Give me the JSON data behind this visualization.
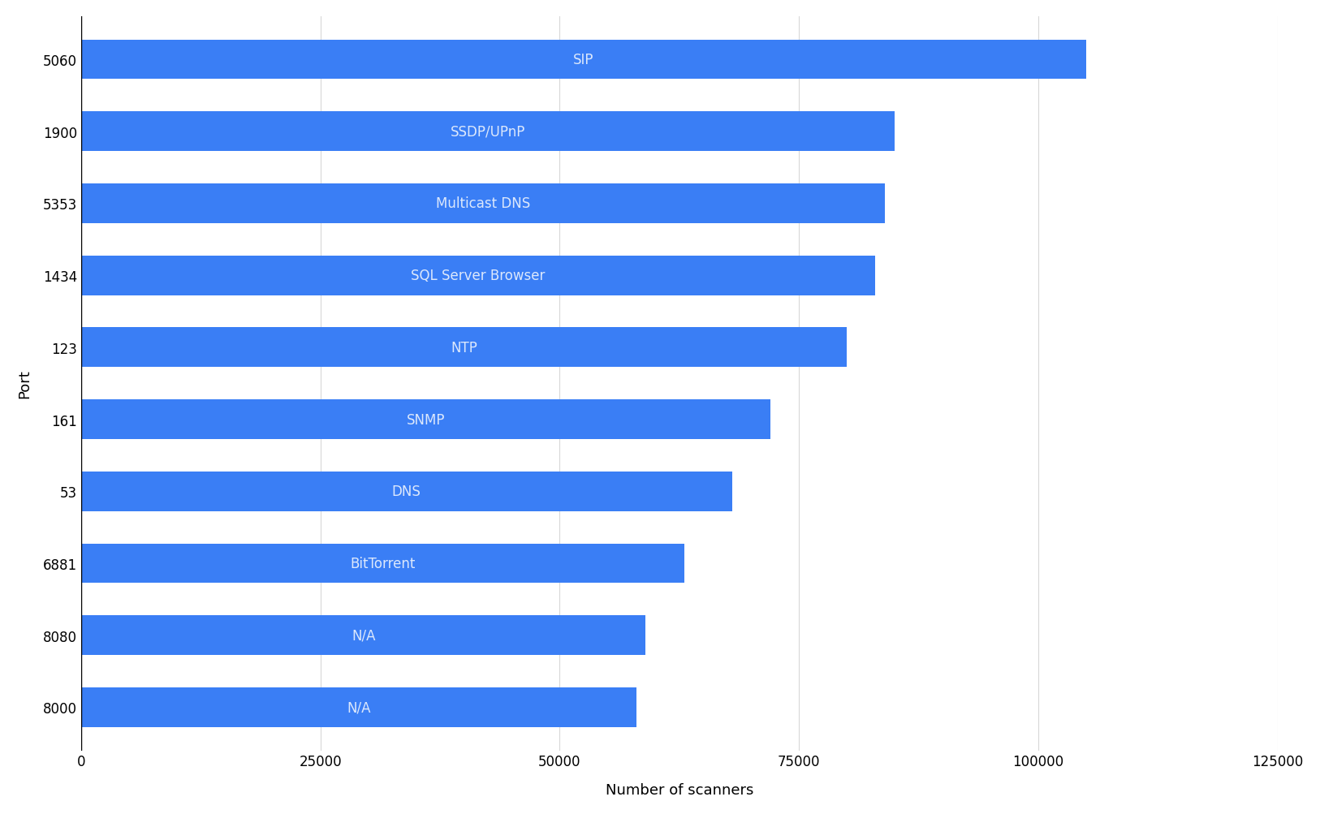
{
  "ports": [
    "5060",
    "1900",
    "5353",
    "1434",
    "123",
    "161",
    "53",
    "6881",
    "8080",
    "8000"
  ],
  "services": [
    "SIP",
    "SSDP/UPnP",
    "Multicast DNS",
    "SQL Server Browser",
    "NTP",
    "SNMP",
    "DNS",
    "BitTorrent",
    "N/A",
    "N/A"
  ],
  "values": [
    105000,
    85000,
    84000,
    83000,
    80000,
    72000,
    68000,
    63000,
    59000,
    58000
  ],
  "bar_color": "#3a7ef5",
  "label_color": "#dce8fc",
  "label_fontsize": 12,
  "xlabel": "Number of scanners",
  "ylabel": "Port",
  "xlabel_fontsize": 13,
  "ylabel_fontsize": 13,
  "tick_fontsize": 12,
  "background_color": "#ffffff",
  "grid_color": "#d8d8d8",
  "xlim": [
    0,
    125000
  ],
  "xticks": [
    0,
    25000,
    50000,
    75000,
    100000,
    125000
  ]
}
